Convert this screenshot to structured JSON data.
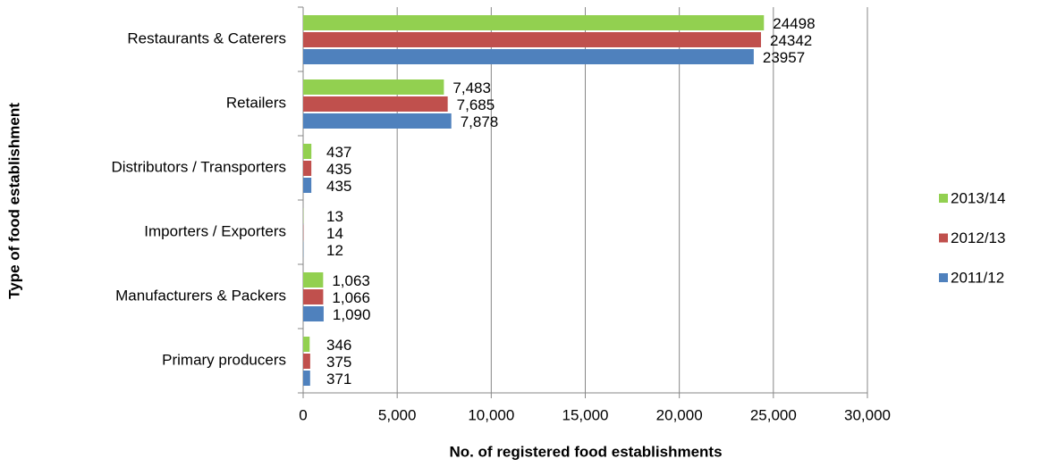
{
  "chart_data": {
    "type": "bar",
    "orientation": "horizontal",
    "x_axis_label": "No. of registered food establishments",
    "y_axis_label": "Type of food establishment",
    "categories": [
      "Restaurants & Caterers",
      "Retailers",
      "Distributors / Transporters",
      "Importers / Exporters",
      "Manufacturers & Packers",
      "Primary producers"
    ],
    "series": [
      {
        "name": "2013/14",
        "color": "#92d050",
        "values": [
          24498,
          7483,
          437,
          13,
          1063,
          346
        ],
        "value_labels": [
          "24498",
          "7,483",
          "437",
          "13",
          "1,063",
          "346"
        ]
      },
      {
        "name": "2012/13",
        "color": "#c0504d",
        "values": [
          24342,
          7685,
          435,
          14,
          1066,
          375
        ],
        "value_labels": [
          "24342",
          "7,685",
          "435",
          "14",
          "1,066",
          "375"
        ]
      },
      {
        "name": "2011/12",
        "color": "#4f81bd",
        "values": [
          23957,
          7878,
          435,
          12,
          1090,
          371
        ],
        "value_labels": [
          "23957",
          "7,878",
          "435",
          "12",
          "1,090",
          "371"
        ]
      }
    ],
    "xlim": [
      0,
      30000
    ],
    "xticks": [
      0,
      {
        "value": 5000,
        "label": "5,000"
      },
      {
        "value": 10000,
        "label": "10,000"
      },
      {
        "value": 15000,
        "label": "15,000"
      },
      {
        "value": 20000,
        "label": "20,000"
      },
      {
        "value": 25000,
        "label": "25,000"
      },
      {
        "value": 30000,
        "label": "30,000"
      }
    ],
    "grid": true,
    "legend": "right"
  }
}
